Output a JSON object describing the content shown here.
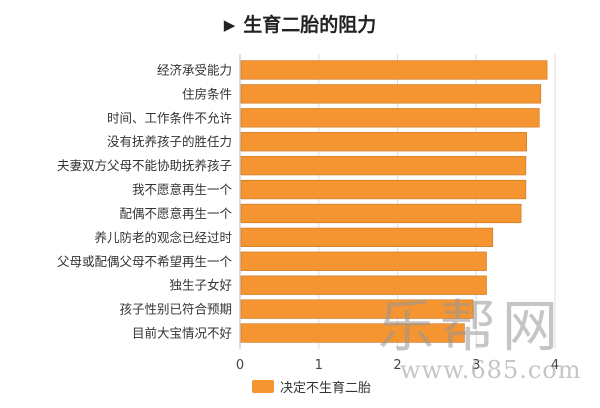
{
  "title_marker": "▶",
  "chart_data": {
    "type": "bar",
    "orientation": "horizontal",
    "title": "生育二胎的阻力",
    "categories": [
      "经济承受能力",
      "住房条件",
      "时间、工作条件不允许",
      "没有抚养孩子的胜任力",
      "夫妻双方父母不能协助抚养孩子",
      "我不愿意再生一个",
      "配偶不愿意再生一个",
      "养儿防老的观念已经过时",
      "父母或配偶父母不希望再生一个",
      "独生子女好",
      "孩子性别已符合预期",
      "目前大宝情况不好"
    ],
    "series": [
      {
        "name": "决定不生育二胎",
        "values": [
          3.9,
          3.82,
          3.8,
          3.64,
          3.63,
          3.63,
          3.57,
          3.21,
          3.13,
          3.13,
          2.96,
          2.85
        ]
      }
    ],
    "xlim": [
      0,
      4
    ],
    "xticks": [
      "0",
      "1",
      "2",
      "3",
      "4"
    ],
    "grid": true,
    "legend_position": "bottom",
    "colors": {
      "bar": "#F59531",
      "bar_edge": "#C9741F",
      "grid": "#DDDDDD",
      "axis": "#BBBBBB"
    }
  },
  "watermark": {
    "name": "乐帮网",
    "url": "www.685.com"
  }
}
